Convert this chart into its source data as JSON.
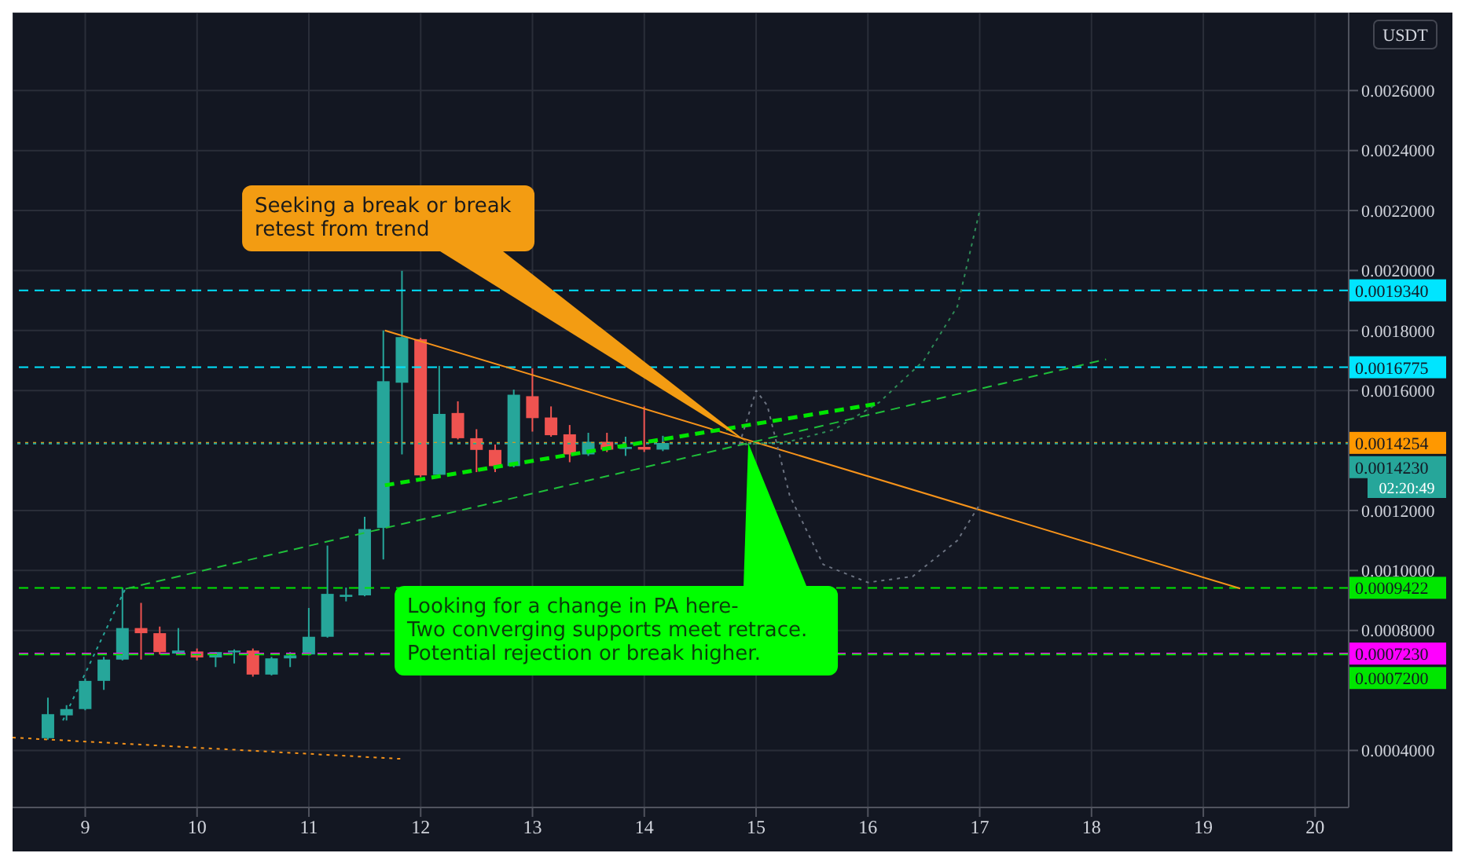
{
  "chart_data": {
    "type": "candlestick",
    "ylabel": "USDT",
    "x": [
      8.6667,
      8.8333,
      9,
      9.1667,
      9.3333,
      9.5,
      9.6667,
      9.8333,
      10,
      10.1667,
      10.3333,
      10.5,
      10.6667,
      10.8333,
      11,
      11.1667,
      11.3333,
      11.5,
      11.6667,
      11.8333,
      12,
      12.1667,
      12.3333,
      12.5,
      12.6667,
      12.8333,
      13,
      13.1667,
      13.3333,
      13.5,
      13.6667,
      13.8333,
      14,
      14.1667
    ],
    "ohlc": [
      [
        0.000441,
        0.000576,
        0.000436,
        0.000521
      ],
      [
        0.000517,
        0.000551,
        0.0005,
        0.000538
      ],
      [
        0.000538,
        0.00064,
        0.000534,
        0.000632
      ],
      [
        0.000632,
        0.000712,
        0.000602,
        0.000703
      ],
      [
        0.000703,
        0.000943,
        0.0007,
        0.000808
      ],
      [
        0.000808,
        0.000892,
        0.000703,
        0.000791
      ],
      [
        0.000791,
        0.000813,
        0.00072,
        0.000728
      ],
      [
        0.000723,
        0.000808,
        0.00072,
        0.000733
      ],
      [
        0.00073,
        0.00074,
        0.0007,
        0.00071
      ],
      [
        0.00071,
        0.000728,
        0.000678,
        0.000728
      ],
      [
        0.000727,
        0.000737,
        0.00069,
        0.000733
      ],
      [
        0.000733,
        0.00074,
        0.000646,
        0.000653
      ],
      [
        0.000653,
        0.000712,
        0.00065,
        0.000707
      ],
      [
        0.000707,
        0.000728,
        0.000678,
        0.000717
      ],
      [
        0.00072,
        0.000875,
        0.000717,
        0.000779
      ],
      [
        0.000779,
        0.001083,
        0.000776,
        0.000922
      ],
      [
        0.000912,
        0.000943,
        0.000897,
        0.000919
      ],
      [
        0.000917,
        0.001179,
        0.000914,
        0.001138
      ],
      [
        0.001142,
        0.0018,
        0.001037,
        0.001631
      ],
      [
        0.001626,
        0.001999,
        0.001387,
        0.001778
      ],
      [
        0.001771,
        0.001775,
        0.001311,
        0.001317
      ],
      [
        0.001319,
        0.001682,
        0.001316,
        0.001522
      ],
      [
        0.001525,
        0.001564,
        0.001437,
        0.001441
      ],
      [
        0.001441,
        0.001471,
        0.001328,
        0.001402
      ],
      [
        0.001402,
        0.00142,
        0.001328,
        0.001348
      ],
      [
        0.001348,
        0.001603,
        0.001344,
        0.001586
      ],
      [
        0.001581,
        0.001674,
        0.001463,
        0.001508
      ],
      [
        0.00151,
        0.001547,
        0.001446,
        0.001451
      ],
      [
        0.001454,
        0.001485,
        0.001361,
        0.001387
      ],
      [
        0.001387,
        0.001459,
        0.001382,
        0.001429
      ],
      [
        0.001429,
        0.001459,
        0.001395,
        0.001403
      ],
      [
        0.001405,
        0.001446,
        0.001382,
        0.001412
      ],
      [
        0.001412,
        0.001547,
        0.001395,
        0.001403
      ],
      [
        0.001403,
        0.001449,
        0.001398,
        0.001425
      ]
    ],
    "colors": [
      "#26a69a",
      "#26a69a",
      "#26a69a",
      "#26a69a",
      "#26a69a",
      "#ef5350",
      "#ef5350",
      "#26a69a",
      "#ef5350",
      "#26a69a",
      "#26a69a",
      "#ef5350",
      "#26a69a",
      "#26a69a",
      "#26a69a",
      "#26a69a",
      "#26a69a",
      "#26a69a",
      "#26a69a",
      "#26a69a",
      "#ef5350",
      "#26a69a",
      "#ef5350",
      "#ef5350",
      "#ef5350",
      "#26a69a",
      "#ef5350",
      "#ef5350",
      "#ef5350",
      "#26a69a",
      "#ef5350",
      "#26a69a",
      "#ef5350",
      "#26a69a"
    ],
    "series": [
      {
        "type": "line",
        "color": "#f7931a",
        "line_style": "solid",
        "x": [
          11.68,
          19.33
        ],
        "values": [
          0.0018,
          0.00094
        ]
      },
      {
        "type": "line",
        "color": "#00e600",
        "line_style": "dashed",
        "x": [
          11.68,
          16.1
        ],
        "values": [
          0.001284,
          0.001557
        ]
      },
      {
        "type": "line",
        "color": "#1fbf3a",
        "line_style": "dashed",
        "x": [
          9.36,
          18.13
        ],
        "values": [
          0.000939,
          0.001704
        ]
      },
      {
        "type": "line",
        "color": "#2e8b57",
        "line_style": "dotted",
        "x": [
          14.9,
          15.3,
          15.7,
          16.1,
          16.5,
          16.8,
          17
        ],
        "values": [
          0.00142,
          0.00143,
          0.00147,
          0.00156,
          0.0017,
          0.00188,
          0.0022
        ]
      },
      {
        "type": "line",
        "color": "#6b7280",
        "line_style": "dotted",
        "x": [
          14.85,
          15,
          15.1,
          15.3,
          15.6,
          16,
          16.4,
          16.8,
          17
        ],
        "values": [
          0.00142,
          0.0016,
          0.00155,
          0.00125,
          0.00102,
          0.00096,
          0.00098,
          0.0011,
          0.00122
        ]
      },
      {
        "type": "line",
        "color": "#26a69a",
        "line_style": "dotted",
        "x": [
          8.8,
          9.36
        ],
        "values": [
          0.0005,
          0.00094
        ]
      },
      {
        "type": "line",
        "color": "#f7931a",
        "line_style": "dotted",
        "x": [
          8.35,
          11.82
        ],
        "values": [
          0.000443,
          0.000372
        ]
      }
    ],
    "xlim": [
      8.35,
      20.3
    ],
    "xticks": [
      9,
      10,
      11,
      12,
      13,
      14,
      15,
      16,
      17,
      18,
      19,
      20
    ],
    "ylim": [
      0.00021,
      0.00286
    ],
    "yticks": [
      {
        "value": 0.0004,
        "label": "0.0004000"
      },
      {
        "value": 0.0008,
        "label": "0.0008000"
      },
      {
        "value": 0.001,
        "label": "0.0010000"
      },
      {
        "value": 0.0012,
        "label": "0.0012000"
      },
      {
        "value": 0.0016,
        "label": "0.0016000"
      },
      {
        "value": 0.0018,
        "label": "0.0018000"
      },
      {
        "value": 0.002,
        "label": "0.0020000"
      },
      {
        "value": 0.0022,
        "label": "0.0022000"
      },
      {
        "value": 0.0024,
        "label": "0.0024000"
      },
      {
        "value": 0.0026,
        "label": "0.0026000"
      }
    ],
    "grid": true,
    "ref_lines": [
      {
        "axis": "y",
        "value": 0.001934,
        "label": "0.0019340",
        "color": "#00e5ff",
        "line_style": "dashed"
      },
      {
        "axis": "y",
        "value": 0.0016775,
        "label": "0.0016775",
        "color": "#00e5ff",
        "line_style": "dashed"
      },
      {
        "axis": "y",
        "value": 0.0014254,
        "label": "0.0014254",
        "color": "#ff9800",
        "line_style": "dotted"
      },
      {
        "axis": "y",
        "value": 0.001423,
        "label": "0.0014230",
        "color": "#26a69a",
        "line_style": "dotted"
      },
      {
        "axis": "y",
        "value": 0.0009422,
        "label": "0.0009422",
        "color": "#00e600",
        "line_style": "dashed"
      },
      {
        "axis": "y",
        "value": 0.000723,
        "label": "0.0007230",
        "color": "#ff00ff",
        "line_style": "dashed"
      },
      {
        "axis": "y",
        "value": 0.00072,
        "label": "0.0007200",
        "color": "#00e600",
        "line_style": "dashed"
      }
    ],
    "annotations": [
      "Seeking a break or break\nretest from trend",
      {
        "text": "Looking for a change in PA here-\nTwo converging supports meet retrace.\nPotential rejection or break higher.",
        "x": 14.93,
        "y": 0.001425
      },
      "02:20:49"
    ]
  }
}
